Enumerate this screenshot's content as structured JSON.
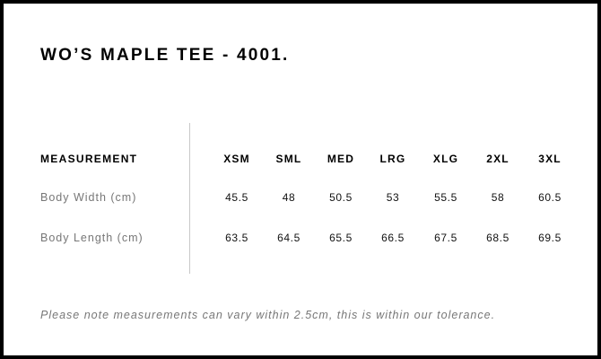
{
  "title": "WO’S MAPLE TEE - 4001.",
  "table": {
    "header_label": "MEASUREMENT",
    "sizes": [
      "XSM",
      "SML",
      "MED",
      "LRG",
      "XLG",
      "2XL",
      "3XL"
    ],
    "rows": [
      {
        "label": "Body Width (cm)",
        "values": [
          "45.5",
          "48",
          "50.5",
          "53",
          "55.5",
          "58",
          "60.5"
        ]
      },
      {
        "label": "Body Length (cm)",
        "values": [
          "63.5",
          "64.5",
          "65.5",
          "66.5",
          "67.5",
          "68.5",
          "69.5"
        ]
      }
    ]
  },
  "note": "Please note measurements can vary within 2.5cm, this is within our tolerance."
}
